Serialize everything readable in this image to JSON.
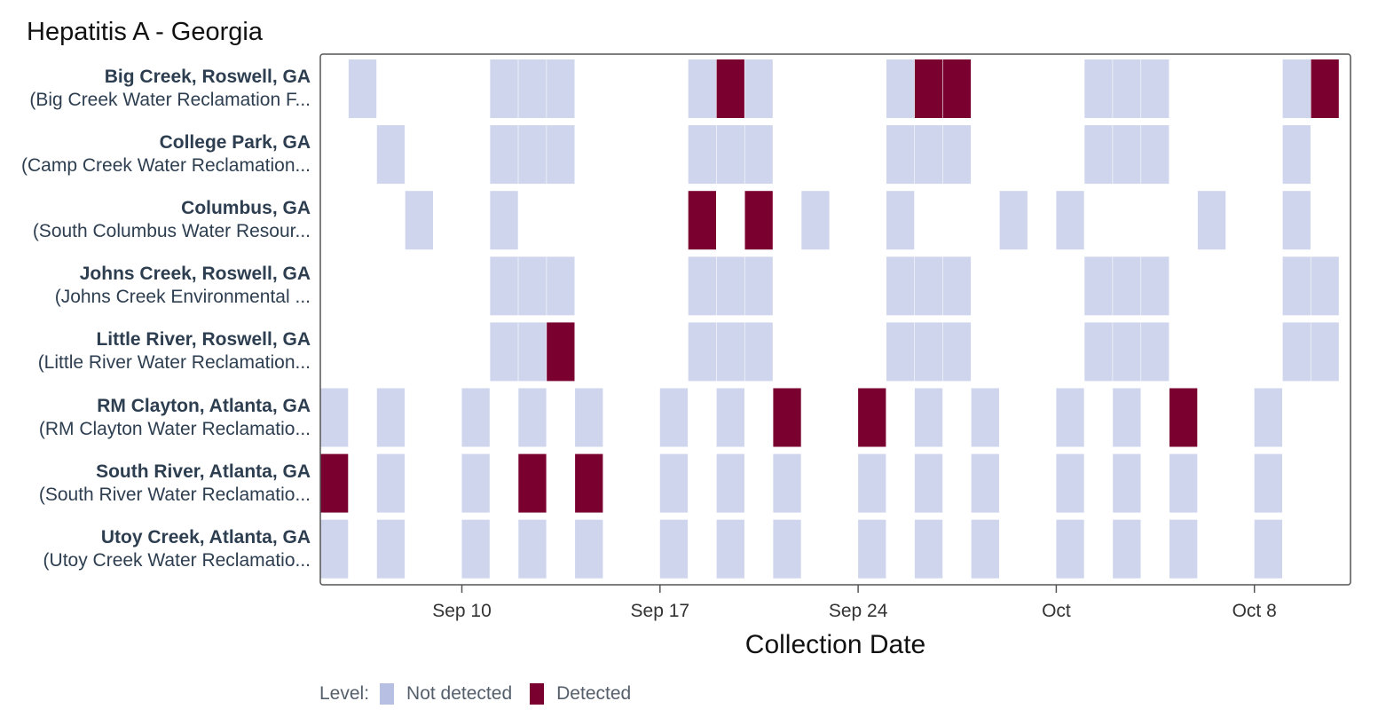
{
  "chart_data": {
    "type": "heatmap",
    "title": "Hepatitis A - Georgia",
    "xlabel": "Collection Date",
    "x_start_date": "2023-09-05",
    "x_end_date": "2023-10-10",
    "x_ticks": [
      {
        "label": "Sep 10",
        "day": 5
      },
      {
        "label": "Sep 17",
        "day": 12
      },
      {
        "label": "Sep 24",
        "day": 19
      },
      {
        "label": "Oct",
        "day": 26
      },
      {
        "label": "Oct 8",
        "day": 33
      }
    ],
    "legend": {
      "title": "Level:",
      "items": [
        {
          "name": "Not detected",
          "color": "#ced5ed",
          "swatch": "#b7c0e2"
        },
        {
          "name": "Detected",
          "color": "#7a0030",
          "swatch": "#7a0030"
        }
      ]
    },
    "rows": [
      {
        "site": "Big Creek, Roswell, GA",
        "facility": "(Big Creek Water Reclamation F...",
        "samples": [
          {
            "day": 1,
            "level": "N"
          },
          {
            "day": 6,
            "level": "N"
          },
          {
            "day": 7,
            "level": "N"
          },
          {
            "day": 8,
            "level": "N"
          },
          {
            "day": 13,
            "level": "N"
          },
          {
            "day": 14,
            "level": "D"
          },
          {
            "day": 15,
            "level": "N"
          },
          {
            "day": 20,
            "level": "N"
          },
          {
            "day": 21,
            "level": "D"
          },
          {
            "day": 22,
            "level": "D"
          },
          {
            "day": 27,
            "level": "N"
          },
          {
            "day": 28,
            "level": "N"
          },
          {
            "day": 29,
            "level": "N"
          },
          {
            "day": 34,
            "level": "N"
          },
          {
            "day": 35,
            "level": "D"
          }
        ]
      },
      {
        "site": "College Park, GA",
        "facility": "(Camp Creek Water Reclamation...",
        "samples": [
          {
            "day": 2,
            "level": "N"
          },
          {
            "day": 6,
            "level": "N"
          },
          {
            "day": 7,
            "level": "N"
          },
          {
            "day": 8,
            "level": "N"
          },
          {
            "day": 13,
            "level": "N"
          },
          {
            "day": 14,
            "level": "N"
          },
          {
            "day": 15,
            "level": "N"
          },
          {
            "day": 20,
            "level": "N"
          },
          {
            "day": 21,
            "level": "N"
          },
          {
            "day": 22,
            "level": "N"
          },
          {
            "day": 27,
            "level": "N"
          },
          {
            "day": 28,
            "level": "N"
          },
          {
            "day": 29,
            "level": "N"
          },
          {
            "day": 34,
            "level": "N"
          }
        ]
      },
      {
        "site": "Columbus, GA",
        "facility": "(South Columbus Water Resour...",
        "samples": [
          {
            "day": 3,
            "level": "N"
          },
          {
            "day": 6,
            "level": "N"
          },
          {
            "day": 13,
            "level": "D"
          },
          {
            "day": 15,
            "level": "D"
          },
          {
            "day": 17,
            "level": "N"
          },
          {
            "day": 20,
            "level": "N"
          },
          {
            "day": 24,
            "level": "N"
          },
          {
            "day": 26,
            "level": "N"
          },
          {
            "day": 31,
            "level": "N"
          },
          {
            "day": 34,
            "level": "N"
          }
        ]
      },
      {
        "site": "Johns Creek, Roswell, GA",
        "facility": "(Johns Creek Environmental ...",
        "samples": [
          {
            "day": 6,
            "level": "N"
          },
          {
            "day": 7,
            "level": "N"
          },
          {
            "day": 8,
            "level": "N"
          },
          {
            "day": 13,
            "level": "N"
          },
          {
            "day": 14,
            "level": "N"
          },
          {
            "day": 15,
            "level": "N"
          },
          {
            "day": 20,
            "level": "N"
          },
          {
            "day": 21,
            "level": "N"
          },
          {
            "day": 22,
            "level": "N"
          },
          {
            "day": 27,
            "level": "N"
          },
          {
            "day": 28,
            "level": "N"
          },
          {
            "day": 29,
            "level": "N"
          },
          {
            "day": 34,
            "level": "N"
          },
          {
            "day": 35,
            "level": "N"
          }
        ]
      },
      {
        "site": "Little River, Roswell, GA",
        "facility": "(Little River Water Reclamation...",
        "samples": [
          {
            "day": 6,
            "level": "N"
          },
          {
            "day": 7,
            "level": "N"
          },
          {
            "day": 8,
            "level": "D"
          },
          {
            "day": 13,
            "level": "N"
          },
          {
            "day": 14,
            "level": "N"
          },
          {
            "day": 15,
            "level": "N"
          },
          {
            "day": 20,
            "level": "N"
          },
          {
            "day": 21,
            "level": "N"
          },
          {
            "day": 22,
            "level": "N"
          },
          {
            "day": 27,
            "level": "N"
          },
          {
            "day": 28,
            "level": "N"
          },
          {
            "day": 29,
            "level": "N"
          },
          {
            "day": 34,
            "level": "N"
          },
          {
            "day": 35,
            "level": "N"
          }
        ]
      },
      {
        "site": "RM Clayton, Atlanta, GA",
        "facility": "(RM Clayton Water Reclamatio...",
        "samples": [
          {
            "day": 0,
            "level": "N"
          },
          {
            "day": 2,
            "level": "N"
          },
          {
            "day": 5,
            "level": "N"
          },
          {
            "day": 7,
            "level": "N"
          },
          {
            "day": 9,
            "level": "N"
          },
          {
            "day": 12,
            "level": "N"
          },
          {
            "day": 14,
            "level": "N"
          },
          {
            "day": 16,
            "level": "D"
          },
          {
            "day": 19,
            "level": "D"
          },
          {
            "day": 21,
            "level": "N"
          },
          {
            "day": 23,
            "level": "N"
          },
          {
            "day": 26,
            "level": "N"
          },
          {
            "day": 28,
            "level": "N"
          },
          {
            "day": 30,
            "level": "D"
          },
          {
            "day": 33,
            "level": "N"
          }
        ]
      },
      {
        "site": "South River, Atlanta, GA",
        "facility": "(South River Water Reclamatio...",
        "samples": [
          {
            "day": 0,
            "level": "D"
          },
          {
            "day": 2,
            "level": "N"
          },
          {
            "day": 5,
            "level": "N"
          },
          {
            "day": 7,
            "level": "D"
          },
          {
            "day": 9,
            "level": "D"
          },
          {
            "day": 12,
            "level": "N"
          },
          {
            "day": 14,
            "level": "N"
          },
          {
            "day": 16,
            "level": "N"
          },
          {
            "day": 19,
            "level": "N"
          },
          {
            "day": 21,
            "level": "N"
          },
          {
            "day": 23,
            "level": "N"
          },
          {
            "day": 26,
            "level": "N"
          },
          {
            "day": 28,
            "level": "N"
          },
          {
            "day": 30,
            "level": "N"
          },
          {
            "day": 33,
            "level": "N"
          }
        ]
      },
      {
        "site": "Utoy Creek, Atlanta, GA",
        "facility": "(Utoy Creek Water Reclamatio...",
        "samples": [
          {
            "day": 0,
            "level": "N"
          },
          {
            "day": 2,
            "level": "N"
          },
          {
            "day": 5,
            "level": "N"
          },
          {
            "day": 7,
            "level": "N"
          },
          {
            "day": 9,
            "level": "N"
          },
          {
            "day": 12,
            "level": "N"
          },
          {
            "day": 14,
            "level": "N"
          },
          {
            "day": 16,
            "level": "N"
          },
          {
            "day": 19,
            "level": "N"
          },
          {
            "day": 21,
            "level": "N"
          },
          {
            "day": 23,
            "level": "N"
          },
          {
            "day": 26,
            "level": "N"
          },
          {
            "day": 28,
            "level": "N"
          },
          {
            "day": 30,
            "level": "N"
          },
          {
            "day": 33,
            "level": "N"
          }
        ]
      }
    ]
  }
}
